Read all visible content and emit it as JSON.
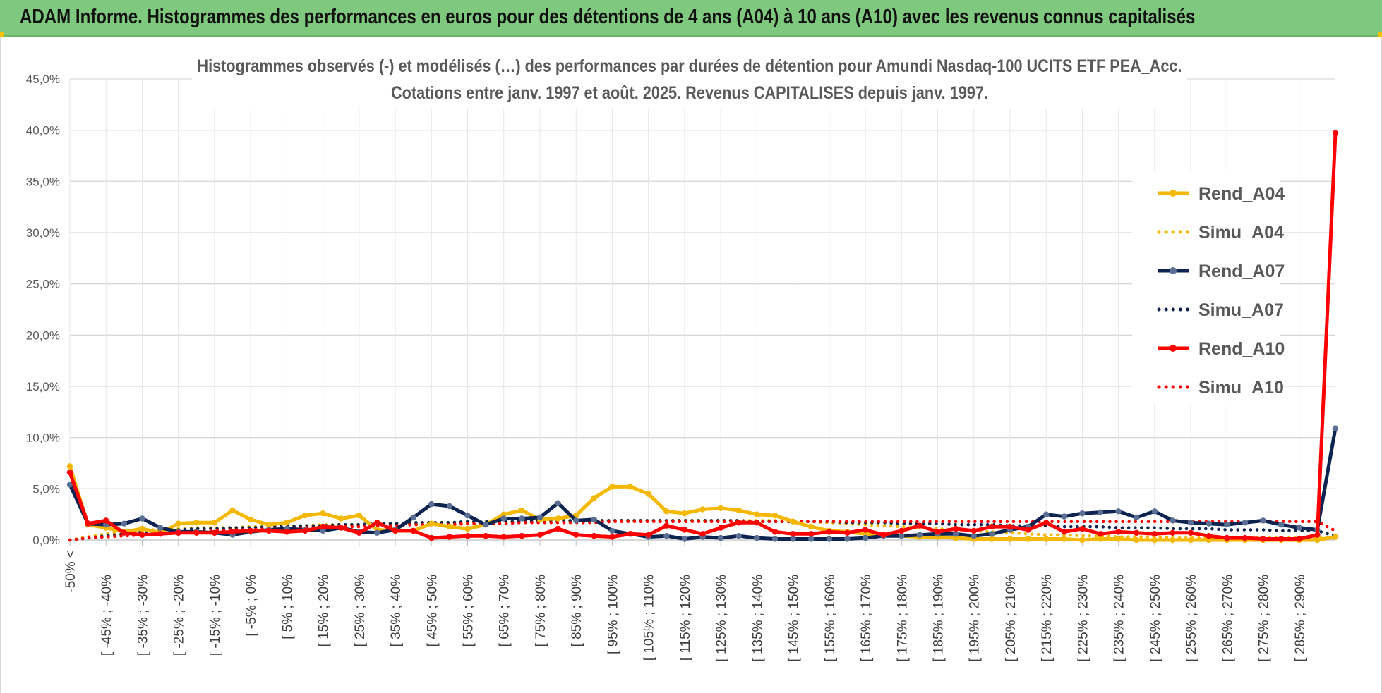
{
  "banner": {
    "title": "ADAM Informe. Histogrammes des performances en euros pour des détentions de 4 ans (A04) à 10 ans (A10) avec les revenus connus capitalisés",
    "color": "#7ec97e"
  },
  "chart_data": {
    "type": "line",
    "title": "Histogrammes observés (-) et modélisés (…) des performances par durées de détention pour Amundi Nasdaq-100 UCITS ETF PEA_Acc.",
    "subtitle": "Cotations entre janv. 1997 et août. 2025. Revenus CAPITALISES depuis janv. 1997.",
    "ylim": [
      0,
      45
    ],
    "y_ticks": [
      "0,0%",
      "5,0%",
      "10,0%",
      "15,0%",
      "20,0%",
      "25,0%",
      "30,0%",
      "35,0%",
      "40,0%",
      "45,0%"
    ],
    "y_unit": "%",
    "grid": true,
    "legend_position": "top-right",
    "x_tick_labels": [
      "-50% <",
      "[ -45% ; -40%",
      "[ -35% ; -30%",
      "[ -25% ; -20%",
      "[ -15% ; -10%",
      "[ -5% ; 0%",
      "[ 5% ; 10%",
      "[ 15% ; 20%",
      "[ 25% ; 30%",
      "[ 35% ; 40%",
      "[ 45% ; 50%",
      "[ 55% ; 60%",
      "[ 65% ; 70%",
      "[ 75% ; 80%",
      "[ 85% ; 90%",
      "[ 95% ; 100%",
      "[ 105% ; 110%",
      "[ 115% ; 120%",
      "[ 125% ; 130%",
      "[ 135% ; 140%",
      "[ 145% ; 150%",
      "[ 155% ; 160%",
      "[ 165% ; 170%",
      "[ 175% ; 180%",
      "[ 185% ; 190%",
      "[ 195% ; 200%",
      "[ 205% ; 210%",
      "[ 215% ; 220%",
      "[ 225% ; 230%",
      "[ 235% ; 240%",
      "[ 245% ; 250%",
      "[ 255% ; 260%",
      "[ 265% ; 270%",
      "[ 275% ; 280%",
      "[ 285% ; 290%"
    ],
    "series": [
      {
        "name": "Rend_A04",
        "color": "#f5b800",
        "style": "solid",
        "values": [
          7.2,
          1.5,
          1.2,
          0.8,
          1.1,
          0.7,
          1.6,
          1.7,
          1.7,
          2.9,
          2.0,
          1.5,
          1.7,
          2.4,
          2.6,
          2.1,
          2.4,
          1.0,
          0.9,
          0.9,
          1.6,
          1.3,
          1.1,
          1.5,
          2.5,
          2.9,
          2.0,
          2.1,
          2.4,
          4.1,
          5.2,
          5.2,
          4.5,
          2.8,
          2.6,
          3.0,
          3.1,
          2.9,
          2.5,
          2.4,
          1.8,
          1.3,
          0.9,
          0.8,
          0.6,
          0.5,
          0.4,
          0.3,
          0.3,
          0.2,
          0.1,
          0.1,
          0.1,
          0.1,
          0.1,
          0.1,
          0.0,
          0.1,
          0.1,
          0.0,
          0.0,
          0.0,
          0.0,
          0.0,
          0.0,
          0.0,
          0.0,
          0.0,
          0.0,
          0.0,
          0.3
        ]
      },
      {
        "name": "Simu_A04",
        "color": "#f5b800",
        "style": "dotted",
        "values": [
          0.0,
          0.3,
          0.6,
          0.9,
          1.0,
          1.0,
          1.1,
          1.2,
          1.2,
          1.2,
          1.3,
          1.3,
          1.4,
          1.4,
          1.5,
          1.5,
          1.5,
          1.6,
          1.6,
          1.6,
          1.7,
          1.7,
          1.7,
          1.8,
          1.8,
          1.8,
          1.8,
          1.8,
          1.9,
          1.9,
          1.9,
          1.9,
          1.9,
          1.9,
          1.9,
          1.9,
          1.9,
          1.9,
          1.9,
          1.9,
          1.8,
          1.8,
          1.7,
          1.6,
          1.5,
          1.4,
          1.3,
          1.2,
          1.1,
          1.0,
          0.9,
          0.8,
          0.7,
          0.6,
          0.5,
          0.5,
          0.4,
          0.4,
          0.3,
          0.3,
          0.3,
          0.2,
          0.2,
          0.2,
          0.2,
          0.2,
          0.2,
          0.2,
          0.2,
          0.2,
          0.2
        ]
      },
      {
        "name": "Rend_A07",
        "color": "#0d2350",
        "style": "solid",
        "values": [
          5.4,
          1.6,
          1.5,
          1.6,
          2.1,
          1.2,
          0.8,
          0.8,
          0.7,
          0.5,
          0.8,
          1.0,
          1.1,
          1.0,
          0.9,
          1.2,
          0.8,
          0.7,
          1.0,
          2.2,
          3.5,
          3.3,
          2.4,
          1.5,
          2.1,
          2.1,
          2.2,
          3.6,
          1.9,
          2.0,
          0.9,
          0.6,
          0.3,
          0.4,
          0.1,
          0.3,
          0.2,
          0.4,
          0.2,
          0.1,
          0.1,
          0.1,
          0.1,
          0.1,
          0.2,
          0.4,
          0.4,
          0.5,
          0.6,
          0.6,
          0.4,
          0.6,
          1.0,
          1.3,
          2.5,
          2.3,
          2.6,
          2.7,
          2.8,
          2.2,
          2.8,
          1.9,
          1.7,
          1.6,
          1.5,
          1.7,
          1.9,
          1.5,
          1.2,
          1.0,
          10.9
        ]
      },
      {
        "name": "Simu_A07",
        "color": "#0d2350",
        "style": "dotted",
        "values": [
          0.0,
          0.2,
          0.4,
          0.6,
          0.8,
          0.9,
          1.0,
          1.1,
          1.1,
          1.2,
          1.2,
          1.3,
          1.3,
          1.4,
          1.4,
          1.5,
          1.5,
          1.6,
          1.6,
          1.7,
          1.7,
          1.7,
          1.8,
          1.8,
          1.8,
          1.8,
          1.9,
          1.9,
          1.9,
          1.9,
          1.9,
          1.9,
          1.9,
          1.9,
          1.9,
          1.9,
          1.9,
          1.9,
          1.8,
          1.8,
          1.8,
          1.8,
          1.8,
          1.7,
          1.7,
          1.7,
          1.6,
          1.6,
          1.6,
          1.5,
          1.5,
          1.5,
          1.4,
          1.4,
          1.4,
          1.3,
          1.3,
          1.3,
          1.2,
          1.2,
          1.2,
          1.1,
          1.1,
          1.1,
          1.0,
          1.0,
          1.0,
          0.9,
          0.9,
          0.9,
          0.4
        ]
      },
      {
        "name": "Rend_A10",
        "color": "#ff0000",
        "style": "solid",
        "values": [
          6.6,
          1.6,
          1.9,
          0.7,
          0.5,
          0.6,
          0.7,
          0.7,
          0.7,
          0.8,
          0.9,
          0.9,
          0.8,
          0.9,
          1.3,
          1.2,
          0.7,
          1.7,
          0.9,
          0.9,
          0.2,
          0.3,
          0.4,
          0.4,
          0.3,
          0.4,
          0.5,
          1.1,
          0.5,
          0.4,
          0.3,
          0.6,
          0.5,
          1.4,
          1.0,
          0.6,
          1.2,
          1.7,
          1.7,
          0.8,
          0.6,
          0.6,
          0.8,
          0.7,
          1.0,
          0.5,
          0.9,
          1.4,
          0.8,
          1.1,
          0.9,
          1.3,
          1.3,
          1.0,
          1.7,
          0.8,
          1.1,
          0.6,
          0.8,
          0.7,
          0.6,
          0.7,
          0.7,
          0.4,
          0.2,
          0.2,
          0.1,
          0.1,
          0.1,
          0.5,
          39.7
        ]
      },
      {
        "name": "Simu_A10",
        "color": "#ff0000",
        "style": "dotted",
        "values": [
          0.0,
          0.2,
          0.3,
          0.4,
          0.5,
          0.6,
          0.7,
          0.8,
          0.9,
          1.0,
          1.0,
          1.1,
          1.1,
          1.2,
          1.2,
          1.3,
          1.3,
          1.4,
          1.4,
          1.5,
          1.5,
          1.5,
          1.6,
          1.6,
          1.6,
          1.7,
          1.7,
          1.7,
          1.7,
          1.7,
          1.8,
          1.8,
          1.8,
          1.8,
          1.8,
          1.8,
          1.8,
          1.8,
          1.8,
          1.8,
          1.8,
          1.8,
          1.8,
          1.8,
          1.8,
          1.8,
          1.8,
          1.8,
          1.8,
          1.8,
          1.8,
          1.8,
          1.8,
          1.8,
          1.8,
          1.8,
          1.8,
          1.8,
          1.8,
          1.8,
          1.8,
          1.8,
          1.8,
          1.8,
          1.8,
          1.8,
          1.8,
          1.8,
          1.8,
          1.8,
          0.9
        ]
      }
    ]
  }
}
